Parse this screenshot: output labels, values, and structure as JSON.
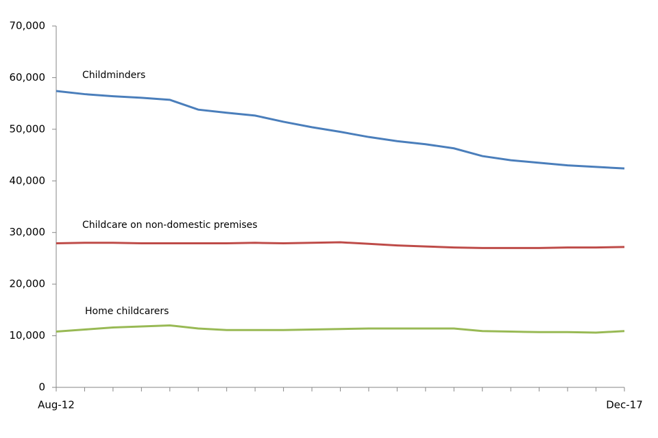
{
  "chart_data": {
    "type": "line",
    "categories": [
      "Aug-12",
      null,
      null,
      null,
      null,
      null,
      null,
      null,
      null,
      null,
      null,
      null,
      null,
      null,
      null,
      null,
      null,
      null,
      null,
      null,
      "Dec-17"
    ],
    "series": [
      {
        "name": "Childminders",
        "color": "#4a7ebb",
        "values": [
          57400,
          56800,
          56400,
          56100,
          55700,
          53800,
          53200,
          52650,
          51450,
          50400,
          49500,
          48500,
          47700,
          47100,
          46300,
          44800,
          44000,
          43500,
          43000,
          42700,
          42400
        ]
      },
      {
        "name": "Childcare on non-domestic premises",
        "color": "#be4b48",
        "values": [
          27900,
          28000,
          28000,
          27900,
          27900,
          27900,
          27900,
          28000,
          27900,
          28000,
          28100,
          27800,
          27500,
          27300,
          27100,
          27000,
          27000,
          27000,
          27100,
          27100,
          27200
        ]
      },
      {
        "name": "Home childcarers",
        "color": "#98b954",
        "values": [
          10800,
          11200,
          11600,
          11800,
          12000,
          11400,
          11100,
          11100,
          11100,
          11200,
          11300,
          11400,
          11400,
          11400,
          11400,
          10900,
          10800,
          10700,
          10700,
          10600,
          10900
        ]
      }
    ],
    "ylim": [
      0,
      70000
    ],
    "yticks": [
      0,
      {
        "value": 10000,
        "label": "10,000"
      },
      {
        "value": 20000,
        "label": "20,000"
      },
      {
        "value": 30000,
        "label": "30,000"
      },
      {
        "value": 40000,
        "label": "40,000"
      },
      {
        "value": 50000,
        "label": "50,000"
      },
      {
        "value": 60000,
        "label": "60,000"
      },
      {
        "value": 70000,
        "label": "70,000"
      }
    ],
    "grid": false
  }
}
